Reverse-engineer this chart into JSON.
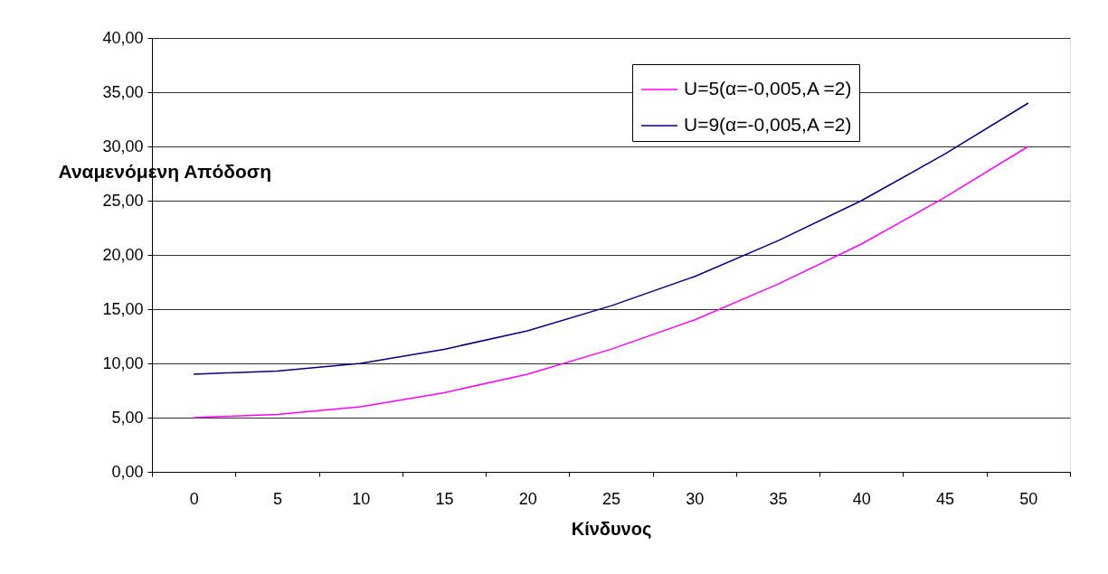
{
  "chart_data": {
    "type": "line",
    "xlabel": "Κίνδυνος",
    "ylabel": "Αναμενόμενη Απόδοση",
    "categories": [
      "0",
      "5",
      "10",
      "15",
      "20",
      "25",
      "30",
      "35",
      "40",
      "45",
      "50"
    ],
    "series": [
      {
        "name": "U=5(α=-0,005,A =2)",
        "color": "#ff00ff",
        "values": [
          5,
          5.3,
          6,
          7.3,
          9,
          11.3,
          14,
          17.3,
          21,
          25.3,
          30
        ]
      },
      {
        "name": "U=9(α=-0,005,A =2)",
        "color": "#000080",
        "values": [
          9,
          9.3,
          10,
          11.3,
          13,
          15.3,
          18,
          21.3,
          25,
          29.3,
          34
        ]
      }
    ],
    "ylim": [
      0,
      40
    ],
    "yticks": [
      {
        "value": 0,
        "label": "0,00"
      },
      {
        "value": 5,
        "label": "5,00"
      },
      {
        "value": 10,
        "label": "10,00"
      },
      {
        "value": 15,
        "label": "15,00"
      },
      {
        "value": 20,
        "label": "20,00"
      },
      {
        "value": 25,
        "label": "25,00"
      },
      {
        "value": 30,
        "label": "30,00"
      },
      {
        "value": 35,
        "label": "35,00"
      },
      {
        "value": 40,
        "label": "40,00"
      }
    ],
    "grid": "y",
    "legend": "top right",
    "marker": "none",
    "line_style": "solid"
  }
}
